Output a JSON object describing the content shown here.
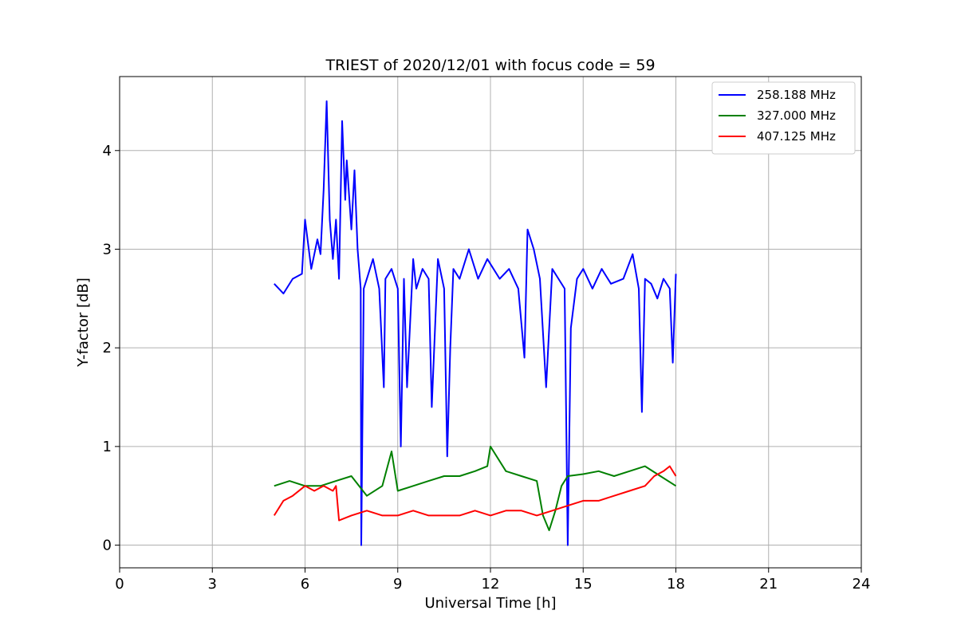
{
  "chart_data": {
    "type": "line",
    "title": "TRIEST of 2020/12/01 with focus code = 59",
    "xlabel": "Universal Time [h]",
    "ylabel": "Y-factor [dB]",
    "xlim": [
      0,
      24
    ],
    "ylim": [
      -0.23,
      4.75
    ],
    "xticks": [
      0,
      3,
      6,
      9,
      12,
      15,
      18,
      21,
      24
    ],
    "xtick_labels": [
      "0",
      "3",
      "6",
      "9",
      "12",
      "15",
      "18",
      "21",
      "24"
    ],
    "yticks": [
      0,
      1,
      2,
      3,
      4
    ],
    "ytick_labels": [
      "0",
      "1",
      "2",
      "3",
      "4"
    ],
    "grid": true,
    "legend_position": "top-right",
    "series": [
      {
        "name": "258.188 MHz",
        "color": "#0000ff",
        "x": [
          5.0,
          5.3,
          5.6,
          5.9,
          6.0,
          6.2,
          6.4,
          6.5,
          6.6,
          6.7,
          6.8,
          6.9,
          7.0,
          7.1,
          7.2,
          7.3,
          7.35,
          7.5,
          7.6,
          7.7,
          7.8,
          7.82,
          7.9,
          8.0,
          8.2,
          8.4,
          8.55,
          8.6,
          8.8,
          9.0,
          9.1,
          9.2,
          9.3,
          9.5,
          9.6,
          9.8,
          10.0,
          10.1,
          10.3,
          10.5,
          10.6,
          10.7,
          10.8,
          11.0,
          11.3,
          11.6,
          11.9,
          12.3,
          12.6,
          12.9,
          13.1,
          13.2,
          13.4,
          13.6,
          13.8,
          14.0,
          14.2,
          14.4,
          14.5,
          14.6,
          14.8,
          15.0,
          15.3,
          15.6,
          15.9,
          16.3,
          16.6,
          16.8,
          16.9,
          17.0,
          17.2,
          17.4,
          17.6,
          17.8,
          17.9,
          18.0
        ],
        "y": [
          2.65,
          2.55,
          2.7,
          2.75,
          3.3,
          2.8,
          3.1,
          2.95,
          3.6,
          4.5,
          3.3,
          2.9,
          3.3,
          2.7,
          4.3,
          3.5,
          3.9,
          3.2,
          3.8,
          3.0,
          2.6,
          0.0,
          2.6,
          2.7,
          2.9,
          2.6,
          1.6,
          2.7,
          2.8,
          2.6,
          1.0,
          2.7,
          1.6,
          2.9,
          2.6,
          2.8,
          2.7,
          1.4,
          2.9,
          2.6,
          0.9,
          2.0,
          2.8,
          2.7,
          3.0,
          2.7,
          2.9,
          2.7,
          2.8,
          2.6,
          1.9,
          3.2,
          3.0,
          2.7,
          1.6,
          2.8,
          2.7,
          2.6,
          0.0,
          2.2,
          2.7,
          2.8,
          2.6,
          2.8,
          2.65,
          2.7,
          2.95,
          2.6,
          1.35,
          2.7,
          2.65,
          2.5,
          2.7,
          2.6,
          1.85,
          2.75
        ]
      },
      {
        "name": "327.000 MHz",
        "color": "#008000",
        "x": [
          5.0,
          5.5,
          6.0,
          6.5,
          7.0,
          7.5,
          8.0,
          8.5,
          8.8,
          9.0,
          9.5,
          10.0,
          10.5,
          11.0,
          11.5,
          11.9,
          12.0,
          12.5,
          13.0,
          13.5,
          13.7,
          13.9,
          14.1,
          14.3,
          14.5,
          15.0,
          15.5,
          16.0,
          16.5,
          17.0,
          17.5,
          18.0
        ],
        "y": [
          0.6,
          0.65,
          0.6,
          0.6,
          0.65,
          0.7,
          0.5,
          0.6,
          0.95,
          0.55,
          0.6,
          0.65,
          0.7,
          0.7,
          0.75,
          0.8,
          1.0,
          0.75,
          0.7,
          0.65,
          0.3,
          0.15,
          0.35,
          0.6,
          0.7,
          0.72,
          0.75,
          0.7,
          0.75,
          0.8,
          0.7,
          0.6
        ]
      },
      {
        "name": "407.125 MHz",
        "color": "#ff0000",
        "x": [
          5.0,
          5.3,
          5.6,
          6.0,
          6.3,
          6.6,
          6.9,
          7.0,
          7.1,
          7.5,
          8.0,
          8.5,
          9.0,
          9.5,
          10.0,
          10.5,
          11.0,
          11.5,
          12.0,
          12.5,
          13.0,
          13.5,
          14.0,
          14.5,
          15.0,
          15.5,
          16.0,
          16.5,
          17.0,
          17.3,
          17.6,
          17.8,
          18.0
        ],
        "y": [
          0.3,
          0.45,
          0.5,
          0.6,
          0.55,
          0.6,
          0.55,
          0.6,
          0.25,
          0.3,
          0.35,
          0.3,
          0.3,
          0.35,
          0.3,
          0.3,
          0.3,
          0.35,
          0.3,
          0.35,
          0.35,
          0.3,
          0.35,
          0.4,
          0.45,
          0.45,
          0.5,
          0.55,
          0.6,
          0.7,
          0.75,
          0.8,
          0.7
        ]
      }
    ]
  }
}
